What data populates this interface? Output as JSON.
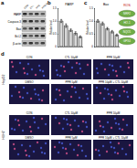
{
  "chart_data": [
    {
      "type": "bar",
      "panel": "b",
      "title": "PARP",
      "y_label": "Relative level",
      "categories": [
        null,
        null,
        null,
        null,
        null
      ],
      "values": [
        1.0,
        0.82,
        0.64,
        0.52,
        0.38
      ],
      "errors": [
        0.06,
        0.07,
        0.05,
        0.06,
        0.04
      ],
      "color": "#d9d9d9",
      "ylim": [
        0,
        1.5
      ],
      "yticks": [
        0,
        {
          "value": 0.5,
          "label": "0.5"
        },
        {
          "value": 1,
          "label": "1.0"
        },
        {
          "value": 1.5,
          "label": "1.5"
        }
      ],
      "tick_labels": "y",
      "grid": false
    },
    {
      "type": "bar",
      "panel": "c",
      "title": "Bax",
      "y_label": "Relative level",
      "categories": [
        null,
        null,
        null,
        null,
        null
      ],
      "values": [
        1.0,
        0.9,
        0.7,
        0.58,
        0.45
      ],
      "errors": [
        0.05,
        0.06,
        0.05,
        0.05,
        0.04
      ],
      "color": "#d9d9d9",
      "ylim": [
        0,
        1.5
      ],
      "yticks": [
        0,
        {
          "value": 0.5,
          "label": "0.5"
        },
        {
          "value": 1,
          "label": "1.0"
        },
        {
          "value": 1.5,
          "label": "1.5"
        }
      ],
      "tick_labels": "y",
      "grid": false
    }
  ],
  "figure": {
    "blot": {
      "panel": "a",
      "lanes": [
        "CON",
        "CTL",
        "PPR",
        "PPR+CTL"
      ],
      "rows": [
        "PARP",
        "Caspase-3",
        "Bax",
        "Bcl-2",
        "β-actin"
      ]
    },
    "diagram": {
      "title": "ROS",
      "items": [
        "NRF2",
        "HO-1",
        "NQO1",
        "GPX4"
      ]
    },
    "images": {
      "panel": "d",
      "groups": [
        {
          "name": "HepG2",
          "panels": [
            "CON",
            "CTL 10μM",
            "PPR 10μM",
            "DMSO",
            "PPR 5μM",
            "PPR 10μM + CTL 10μM"
          ]
        },
        {
          "name": "HUH7",
          "panels": [
            "CON",
            "CTL 10μM",
            "PPR 10μM",
            "DMSO",
            "PPR 5μM",
            "PPR 10μM + CTL 10μM"
          ]
        }
      ]
    }
  }
}
